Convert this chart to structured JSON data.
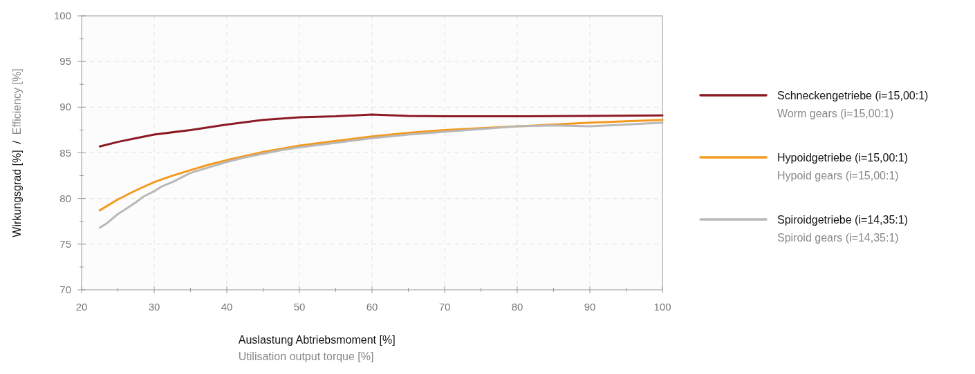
{
  "chart_data": {
    "type": "line",
    "xlabel": "Auslastung Abtriebsmoment [%]\nUtilisation output torque [%]",
    "ylabel": "Wirkungsgrad [%]  /  Efficiency [%]",
    "xlim": [
      20,
      100
    ],
    "xticks": [
      20,
      {
        "value": 25,
        "label": null
      },
      30,
      {
        "value": 35,
        "label": null
      },
      40,
      {
        "value": 45,
        "label": null
      },
      50,
      {
        "value": 55,
        "label": null
      },
      60,
      {
        "value": 65,
        "label": null
      },
      70,
      {
        "value": 75,
        "label": null
      },
      80,
      {
        "value": 85,
        "label": null
      },
      90,
      {
        "value": 95,
        "label": null
      },
      100
    ],
    "ylim": [
      70,
      100
    ],
    "yticks": [
      70,
      {
        "value": 72.5,
        "label": null
      },
      75,
      {
        "value": 77.5,
        "label": null
      },
      80,
      {
        "value": 82.5,
        "label": null
      },
      85,
      {
        "value": 87.5,
        "label": null
      },
      90,
      {
        "value": 92.5,
        "label": null
      },
      95,
      {
        "value": 97.5,
        "label": null
      },
      100
    ],
    "grid": true,
    "legend": "right",
    "line_style": "solid",
    "series": [
      {
        "name": "Schneckengetriebe (i=15,00:1)\nWorm gears (i=15,00:1)",
        "color": "#8b1a24",
        "x": [
          22.5,
          25,
          27.5,
          30,
          35,
          40,
          45,
          50,
          55,
          60,
          65,
          70,
          80,
          90,
          100
        ],
        "values": [
          85.7,
          86.2,
          86.6,
          87.0,
          87.5,
          88.1,
          88.6,
          88.9,
          89.0,
          89.2,
          89.05,
          89.0,
          89.0,
          89.05,
          89.1
        ]
      },
      {
        "name": "Hypoidgetriebe (i=15,00:1)\nHypoid gears (i=15,00:1)",
        "color": "#f39a1e",
        "x": [
          22.5,
          25,
          27.5,
          30,
          32.5,
          35,
          37.5,
          40,
          45,
          50,
          55,
          60,
          65,
          70,
          80,
          90,
          100
        ],
        "values": [
          78.7,
          79.9,
          80.9,
          81.8,
          82.5,
          83.1,
          83.7,
          84.2,
          85.1,
          85.8,
          86.3,
          86.8,
          87.2,
          87.5,
          87.9,
          88.3,
          88.6
        ]
      },
      {
        "name": "Spiroidgetriebe (i=14,35:1)\nSpiroid gears (i=14,35:1)",
        "color": "#b8b8b8",
        "x": [
          22.5,
          23.5,
          25,
          26,
          27.5,
          28.5,
          30,
          31,
          32.5,
          34,
          35,
          37.5,
          40,
          42.5,
          45,
          47.5,
          50,
          55,
          60,
          65,
          70,
          75,
          80,
          85,
          90,
          95,
          100
        ],
        "values": [
          76.8,
          77.3,
          78.3,
          78.8,
          79.6,
          80.2,
          80.8,
          81.3,
          81.8,
          82.4,
          82.8,
          83.4,
          84.0,
          84.5,
          84.9,
          85.3,
          85.6,
          86.1,
          86.6,
          87.0,
          87.3,
          87.6,
          87.9,
          88.0,
          87.9,
          88.1,
          88.3
        ]
      }
    ]
  }
}
